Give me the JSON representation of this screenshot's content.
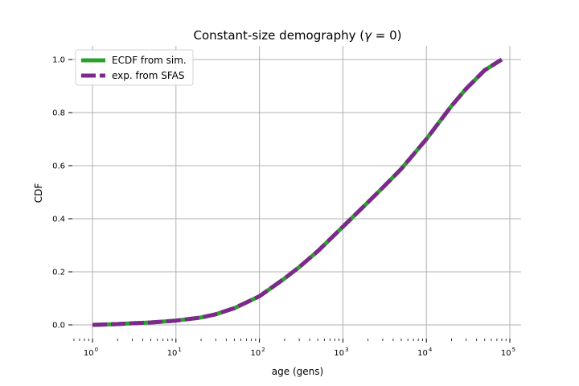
{
  "chart_data": {
    "type": "line",
    "title": "Constant-size demography (γ = 0)",
    "xlabel": "age (gens)",
    "ylabel": "CDF",
    "xscale": "log",
    "xlim": [
      0.55,
      110000
    ],
    "ylim": [
      -0.05,
      1.05
    ],
    "grid": true,
    "legend_position": "top-left",
    "x_ticks": [
      {
        "base": "10",
        "exp": "0",
        "value": 1
      },
      {
        "base": "10",
        "exp": "1",
        "value": 10
      },
      {
        "base": "10",
        "exp": "2",
        "value": 100
      },
      {
        "base": "10",
        "exp": "3",
        "value": 1000
      },
      {
        "base": "10",
        "exp": "4",
        "value": 10000
      },
      {
        "base": "10",
        "exp": "5",
        "value": 100000
      }
    ],
    "y_ticks": [
      "0.0",
      "0.2",
      "0.4",
      "0.6",
      "0.8",
      "1.0"
    ],
    "x": [
      1,
      2,
      3,
      5,
      10,
      20,
      30,
      50,
      100,
      200,
      300,
      500,
      1000,
      2000,
      3000,
      5000,
      10000,
      20000,
      30000,
      50000,
      80000
    ],
    "series": [
      {
        "name": "ECDF from sim.",
        "color": "#2ca02c",
        "style": "solid",
        "values": [
          0.0,
          0.003,
          0.006,
          0.009,
          0.016,
          0.028,
          0.04,
          0.063,
          0.108,
          0.175,
          0.218,
          0.278,
          0.37,
          0.462,
          0.517,
          0.588,
          0.7,
          0.825,
          0.89,
          0.96,
          1.0
        ]
      },
      {
        "name": "exp. from SFAS",
        "color": "#7b2a8b",
        "style": "dashed",
        "values": [
          0.0,
          0.003,
          0.006,
          0.009,
          0.016,
          0.028,
          0.04,
          0.063,
          0.108,
          0.175,
          0.218,
          0.278,
          0.37,
          0.462,
          0.517,
          0.588,
          0.7,
          0.825,
          0.89,
          0.96,
          1.0
        ]
      }
    ]
  }
}
